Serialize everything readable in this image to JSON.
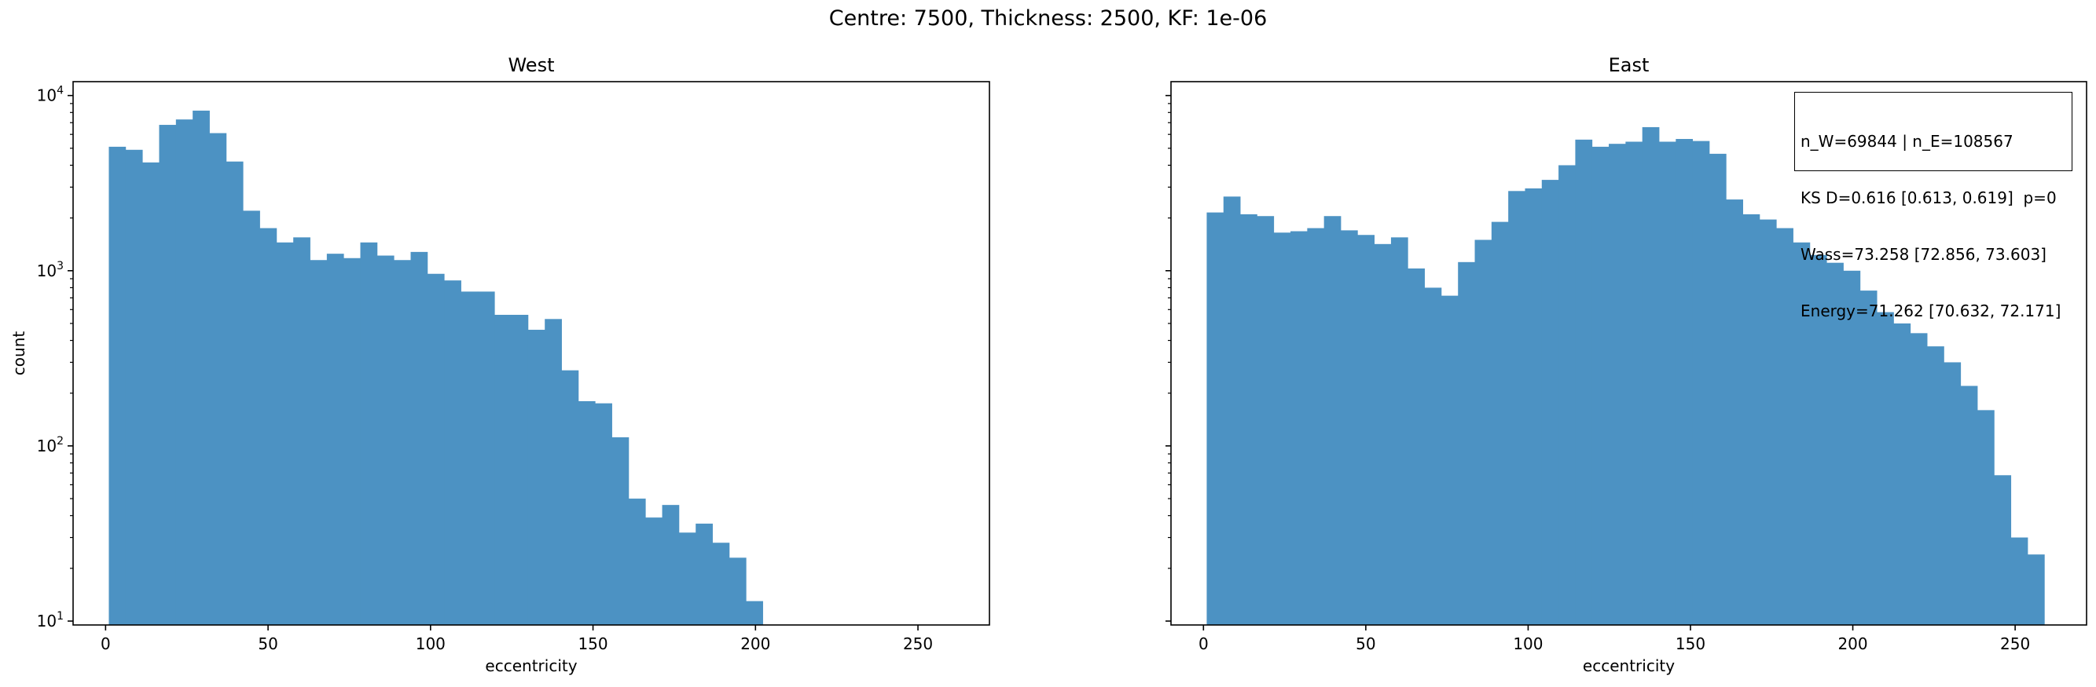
{
  "figure": {
    "suptitle": "Centre: 7500, Thickness: 2500, KF: 1e-06"
  },
  "stats_box": {
    "lines": [
      "n_W=69844 | n_E=108567",
      "KS D=0.616 [0.613, 0.619]  p=0",
      "Wass=73.258 [72.856, 73.603]",
      "Energy=71.262 [70.632, 72.171]"
    ]
  },
  "chart_data": [
    {
      "type": "bar",
      "subtype": "histogram",
      "title": "West",
      "xlabel": "eccentricity",
      "ylabel": "count",
      "yscale": "log",
      "xlim": [
        -10,
        272
      ],
      "ylim": [
        9.5,
        12000
      ],
      "x_ticks": [
        0,
        50,
        100,
        150,
        200,
        250
      ],
      "y_ticks": [
        10,
        100,
        1000,
        10000
      ],
      "y_tick_labels": [
        {
          "base": "10",
          "exp": "1"
        },
        {
          "base": "10",
          "exp": "2"
        },
        {
          "base": "10",
          "exp": "3"
        },
        {
          "base": "10",
          "exp": "4"
        }
      ],
      "bin_width": 5.16,
      "bin_start": 1,
      "color": "#4c92c3",
      "grid": false,
      "values": [
        5100,
        4900,
        4150,
        6800,
        7300,
        8200,
        6100,
        4200,
        2200,
        1750,
        1450,
        1550,
        1150,
        1250,
        1180,
        1450,
        1220,
        1150,
        1280,
        960,
        880,
        760,
        760,
        560,
        560,
        460,
        530,
        270,
        180,
        175,
        112,
        50,
        39,
        46,
        32,
        36,
        28,
        23,
        13
      ]
    },
    {
      "type": "bar",
      "subtype": "histogram",
      "title": "East",
      "xlabel": "eccentricity",
      "ylabel": "",
      "yscale": "log",
      "xlim": [
        -10,
        272
      ],
      "ylim": [
        9.5,
        12000
      ],
      "x_ticks": [
        0,
        50,
        100,
        150,
        200,
        250
      ],
      "bin_width": 5.16,
      "bin_start": 1,
      "color": "#4c92c3",
      "grid": false,
      "values": [
        2150,
        2650,
        2100,
        2050,
        1650,
        1680,
        1750,
        2050,
        1700,
        1600,
        1420,
        1550,
        1030,
        800,
        720,
        1120,
        1500,
        1900,
        2850,
        2950,
        3300,
        4000,
        5600,
        5100,
        5300,
        5450,
        6600,
        5450,
        5650,
        5500,
        4650,
        2550,
        2100,
        1960,
        1750,
        1450,
        1230,
        1110,
        1000,
        770,
        580,
        500,
        440,
        370,
        300,
        220,
        160,
        68,
        30,
        24
      ]
    }
  ]
}
